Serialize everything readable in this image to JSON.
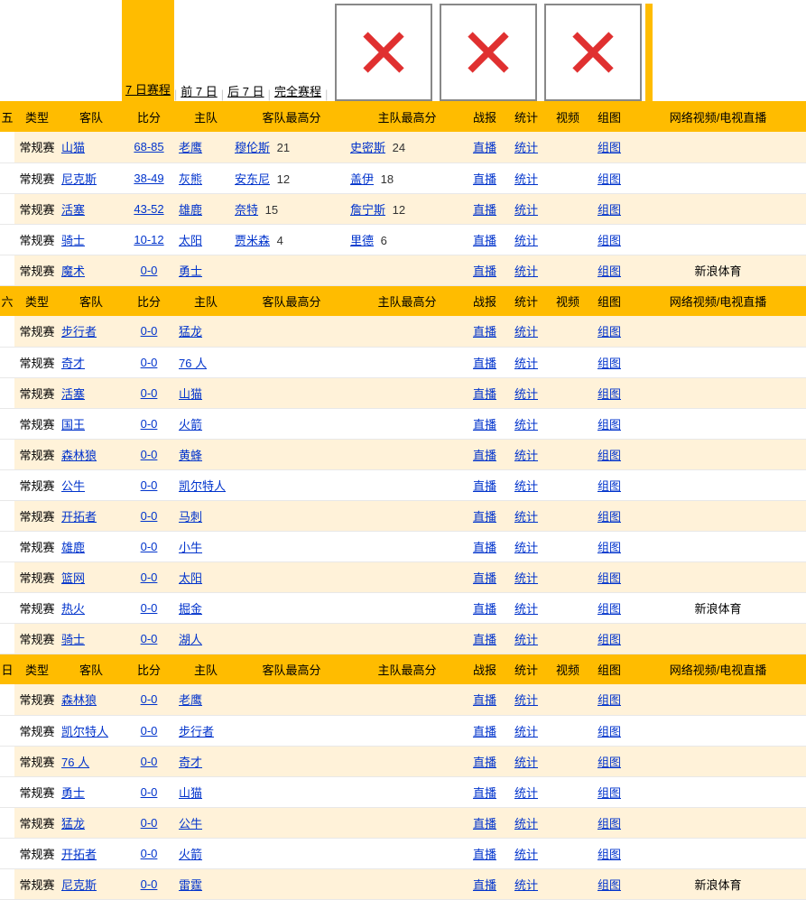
{
  "nav": {
    "tabs": [
      "7 日赛程",
      "前 7 日",
      "后 7 日",
      "完全赛程"
    ],
    "active": 0,
    "separator": "|",
    "ad_count": 3,
    "ad_sep_after": [
      false,
      false,
      true
    ]
  },
  "headers": {
    "day": [
      "五",
      "六",
      "日"
    ],
    "type": "类型",
    "away": "客队",
    "score": "比分",
    "home": "主队",
    "awayHigh": "客队最高分",
    "homeHigh": "主队最高分",
    "report": "战报",
    "stats": "统计",
    "video": "视频",
    "chart": "组图",
    "net": "网络视频/电视直播"
  },
  "labels": {
    "live": "直播",
    "stats": "统计",
    "chart": "组图",
    "type": "常规赛"
  },
  "colors": {
    "highlight": "#ffbc00",
    "oddRow": "#fff2d9",
    "link": "#0033cc",
    "adX": "#e03030",
    "adBorder": "#888888"
  },
  "sections": [
    {
      "rows": [
        {
          "away": "山猫",
          "score": "68-85",
          "home": "老鹰",
          "ap": "穆伦斯",
          "apv": "21",
          "hp": "史密斯",
          "hpv": "24",
          "net": ""
        },
        {
          "away": "尼克斯",
          "score": "38-49",
          "home": "灰熊",
          "ap": "安东尼",
          "apv": "12",
          "hp": "盖伊",
          "hpv": "18",
          "net": ""
        },
        {
          "away": "活塞",
          "score": "43-52",
          "home": "雄鹿",
          "ap": "奈特",
          "apv": "15",
          "hp": "詹宁斯",
          "hpv": "12",
          "net": ""
        },
        {
          "away": "骑士",
          "score": "10-12",
          "home": "太阳",
          "ap": "贾米森",
          "apv": "4",
          "hp": "里德",
          "hpv": "6",
          "net": ""
        },
        {
          "away": "魔术",
          "score": "0-0",
          "home": "勇士",
          "ap": "",
          "apv": "",
          "hp": "",
          "hpv": "",
          "net": "新浪体育"
        }
      ]
    },
    {
      "rows": [
        {
          "away": "步行者",
          "score": "0-0",
          "home": "猛龙",
          "ap": "",
          "apv": "",
          "hp": "",
          "hpv": "",
          "net": ""
        },
        {
          "away": "奇才",
          "score": "0-0",
          "home": "76 人",
          "ap": "",
          "apv": "",
          "hp": "",
          "hpv": "",
          "net": ""
        },
        {
          "away": "活塞",
          "score": "0-0",
          "home": "山猫",
          "ap": "",
          "apv": "",
          "hp": "",
          "hpv": "",
          "net": ""
        },
        {
          "away": "国王",
          "score": "0-0",
          "home": "火箭",
          "ap": "",
          "apv": "",
          "hp": "",
          "hpv": "",
          "net": ""
        },
        {
          "away": "森林狼",
          "score": "0-0",
          "home": "黄蜂",
          "ap": "",
          "apv": "",
          "hp": "",
          "hpv": "",
          "net": ""
        },
        {
          "away": "公牛",
          "score": "0-0",
          "home": "凯尔特人",
          "ap": "",
          "apv": "",
          "hp": "",
          "hpv": "",
          "net": ""
        },
        {
          "away": "开拓者",
          "score": "0-0",
          "home": "马刺",
          "ap": "",
          "apv": "",
          "hp": "",
          "hpv": "",
          "net": ""
        },
        {
          "away": "雄鹿",
          "score": "0-0",
          "home": "小牛",
          "ap": "",
          "apv": "",
          "hp": "",
          "hpv": "",
          "net": ""
        },
        {
          "away": "篮网",
          "score": "0-0",
          "home": "太阳",
          "ap": "",
          "apv": "",
          "hp": "",
          "hpv": "",
          "net": ""
        },
        {
          "away": "热火",
          "score": "0-0",
          "home": "掘金",
          "ap": "",
          "apv": "",
          "hp": "",
          "hpv": "",
          "net": "新浪体育"
        },
        {
          "away": "骑士",
          "score": "0-0",
          "home": "湖人",
          "ap": "",
          "apv": "",
          "hp": "",
          "hpv": "",
          "net": ""
        }
      ]
    },
    {
      "rows": [
        {
          "away": "森林狼",
          "score": "0-0",
          "home": "老鹰",
          "ap": "",
          "apv": "",
          "hp": "",
          "hpv": "",
          "net": ""
        },
        {
          "away": "凯尔特人",
          "score": "0-0",
          "home": "步行者",
          "ap": "",
          "apv": "",
          "hp": "",
          "hpv": "",
          "net": ""
        },
        {
          "away": "76 人",
          "score": "0-0",
          "home": "奇才",
          "ap": "",
          "apv": "",
          "hp": "",
          "hpv": "",
          "net": ""
        },
        {
          "away": "勇士",
          "score": "0-0",
          "home": "山猫",
          "ap": "",
          "apv": "",
          "hp": "",
          "hpv": "",
          "net": ""
        },
        {
          "away": "猛龙",
          "score": "0-0",
          "home": "公牛",
          "ap": "",
          "apv": "",
          "hp": "",
          "hpv": "",
          "net": ""
        },
        {
          "away": "开拓者",
          "score": "0-0",
          "home": "火箭",
          "ap": "",
          "apv": "",
          "hp": "",
          "hpv": "",
          "net": ""
        },
        {
          "away": "尼克斯",
          "score": "0-0",
          "home": "雷霆",
          "ap": "",
          "apv": "",
          "hp": "",
          "hpv": "",
          "net": "新浪体育"
        }
      ]
    }
  ]
}
